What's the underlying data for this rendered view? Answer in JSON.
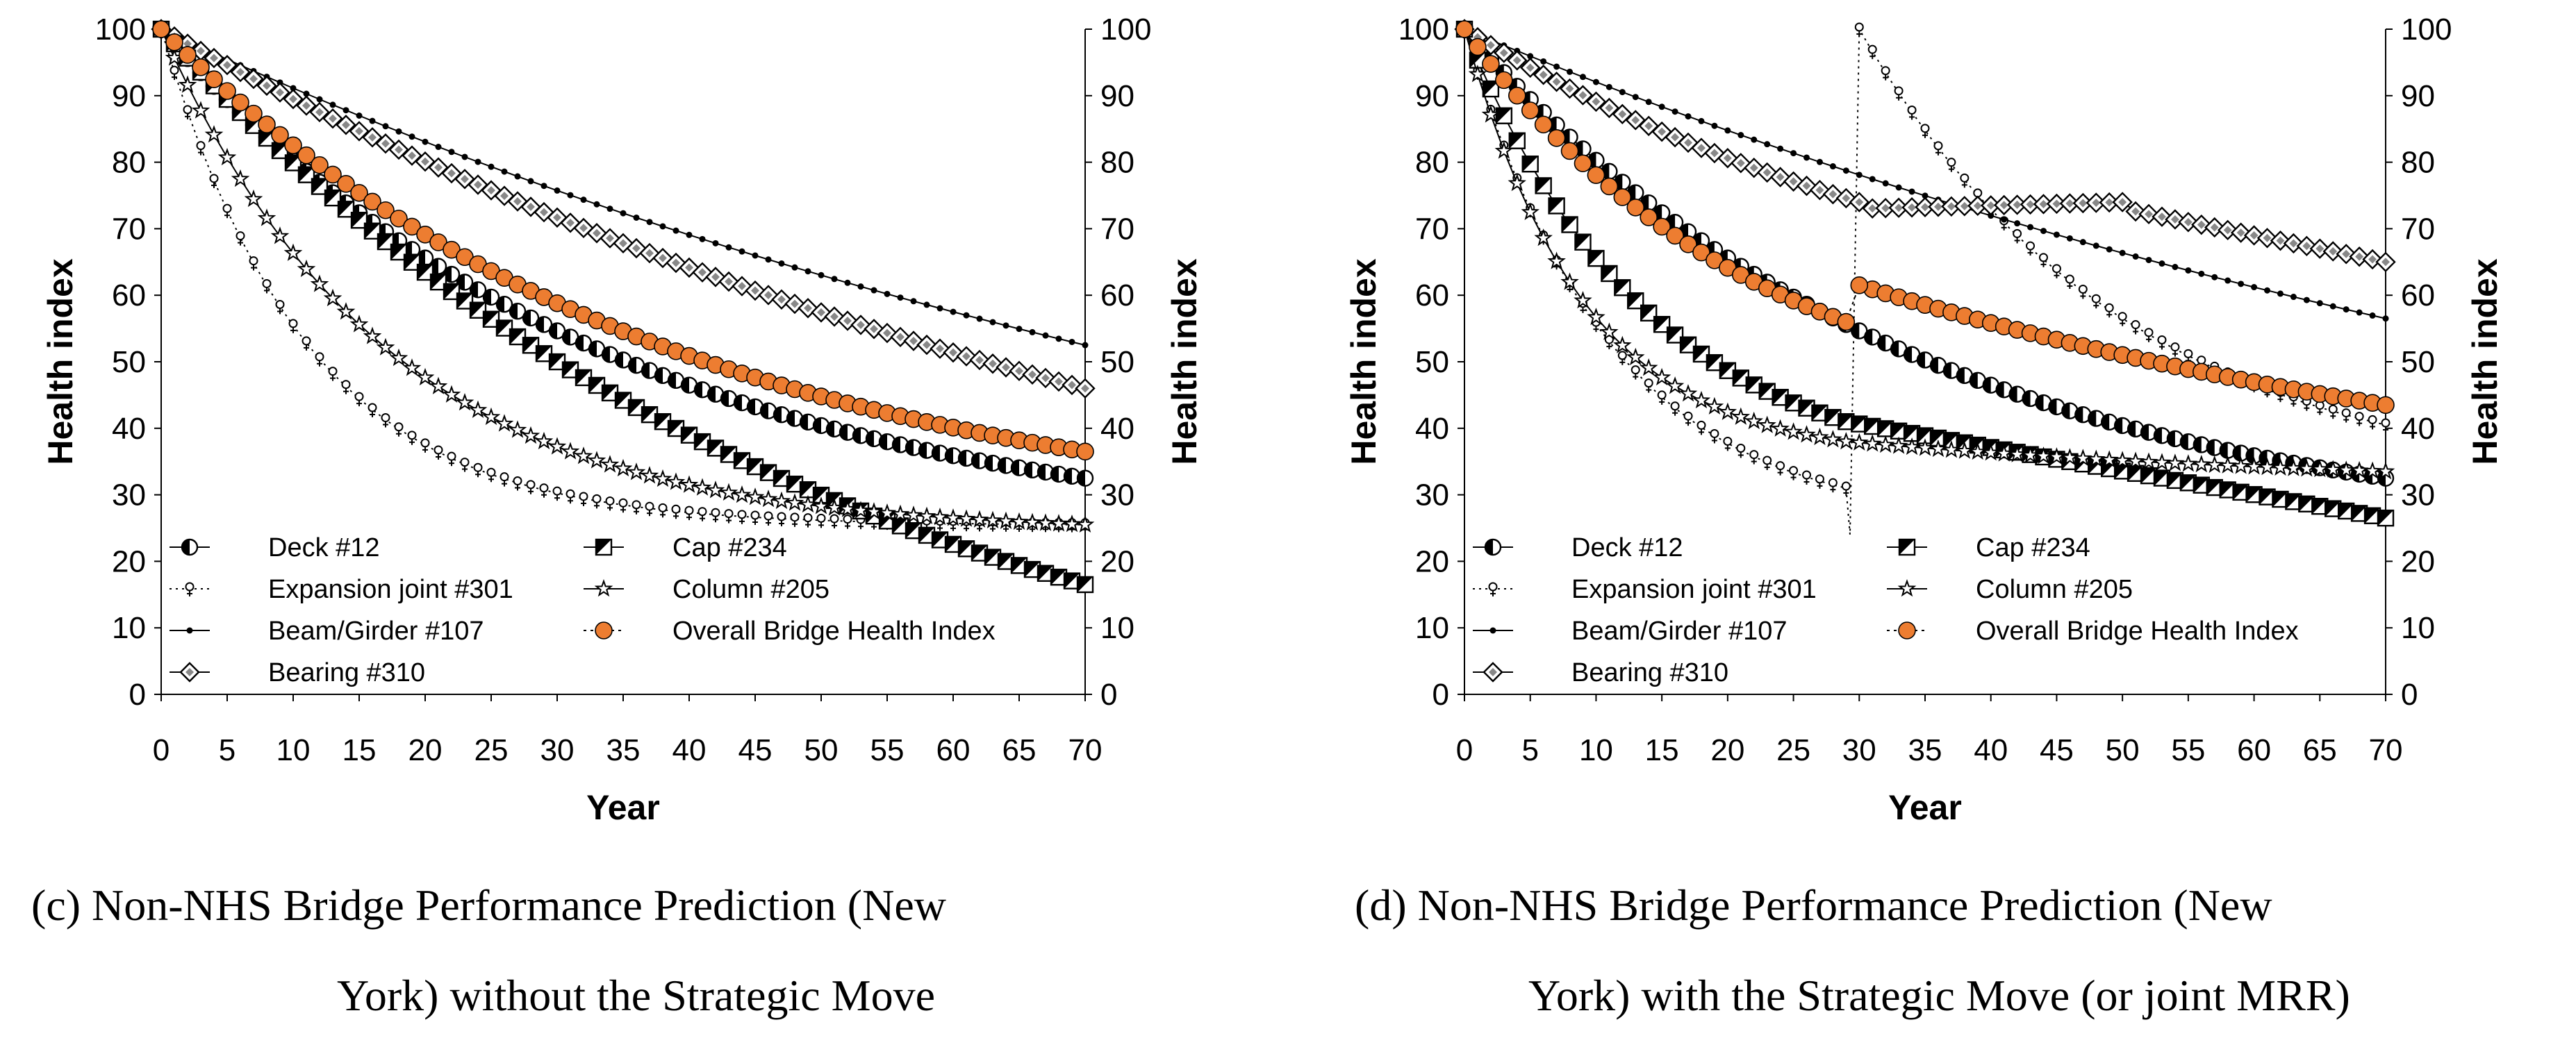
{
  "x_axis": {
    "label": "Year",
    "ticks": [
      0,
      5,
      10,
      15,
      20,
      25,
      30,
      35,
      40,
      45,
      50,
      55,
      60,
      65,
      70
    ]
  },
  "y_axis": {
    "label": "Health index",
    "ticks": [
      0,
      10,
      20,
      30,
      40,
      50,
      60,
      70,
      80,
      90,
      100
    ]
  },
  "colors": {
    "overall": "#ED7D31",
    "line": "#000000"
  },
  "chart_data": [
    {
      "type": "line",
      "caption_line1": "(c) Non-NHS Bridge Performance Prediction (New",
      "caption_line2": "York) without the Strategic Move",
      "xlabel": "Year",
      "ylabel_left": "Health index",
      "ylabel_right": "Health index",
      "xlim": [
        0,
        70
      ],
      "ylim": [
        0,
        100
      ],
      "series": [
        {
          "name": "Deck #12",
          "marker": "half-circle",
          "y0": 100,
          "y70": 32.5,
          "tau": 34
        },
        {
          "name": "Expansion joint #301",
          "marker": "female",
          "y0": 100,
          "y70": 25.5,
          "tau": 11
        },
        {
          "name": "Beam/Girder #107",
          "marker": "dot",
          "y0": 100,
          "y70": 52.5,
          "tau": 105
        },
        {
          "name": "Bearing #310",
          "marker": "diamond",
          "y0": 100,
          "y70": 46,
          "tau": 90
        },
        {
          "name": "Cap #234",
          "marker": "half-square",
          "y0": 100,
          "y70": 16.5,
          "tau": 50
        },
        {
          "name": "Column #205",
          "marker": "star",
          "y0": 100,
          "y70": 25.5,
          "tau": 17
        },
        {
          "name": "Overall Bridge Health Index",
          "marker": "orange-circle",
          "y0": 100,
          "y70": 36.5,
          "tau": 38
        }
      ]
    },
    {
      "type": "line",
      "caption_line1": "(d) Non-NHS Bridge Performance Prediction (New",
      "caption_line2": "York) with the Strategic Move (or joint MRR)",
      "xlabel": "Year",
      "ylabel_left": "Health index",
      "ylabel_right": "Health index",
      "xlim": [
        0,
        70
      ],
      "ylim": [
        0,
        100
      ],
      "series": [
        {
          "name": "Deck #12",
          "marker": "half-circle",
          "y0": 100,
          "y70": 32.5,
          "tau": 34
        },
        {
          "name": "Expansion joint #301",
          "marker": "female",
          "y0": 100,
          "y29": 31,
          "y_reset": 100,
          "y70": 40.5,
          "tau": 11
        },
        {
          "name": "Beam/Girder #107",
          "marker": "dot",
          "y0": 100,
          "y70": 56.5,
          "tau": 115
        },
        {
          "name": "Bearing #310",
          "marker": "diamond",
          "y0": 100,
          "y30": 74,
          "y70": 65,
          "tau": 90
        },
        {
          "name": "Cap #234",
          "marker": "half-square",
          "y0": 100,
          "y29": 41,
          "y70": 26.5,
          "tau": 24
        },
        {
          "name": "Column #205",
          "marker": "star",
          "y0": 100,
          "y29": 38,
          "y70": 33.5,
          "tau": 17
        },
        {
          "name": "Overall Bridge Health Index",
          "marker": "orange-circle",
          "y0": 100,
          "y29": 56,
          "y30": 61.5,
          "y70": 43.5,
          "tau": 38
        }
      ]
    }
  ]
}
